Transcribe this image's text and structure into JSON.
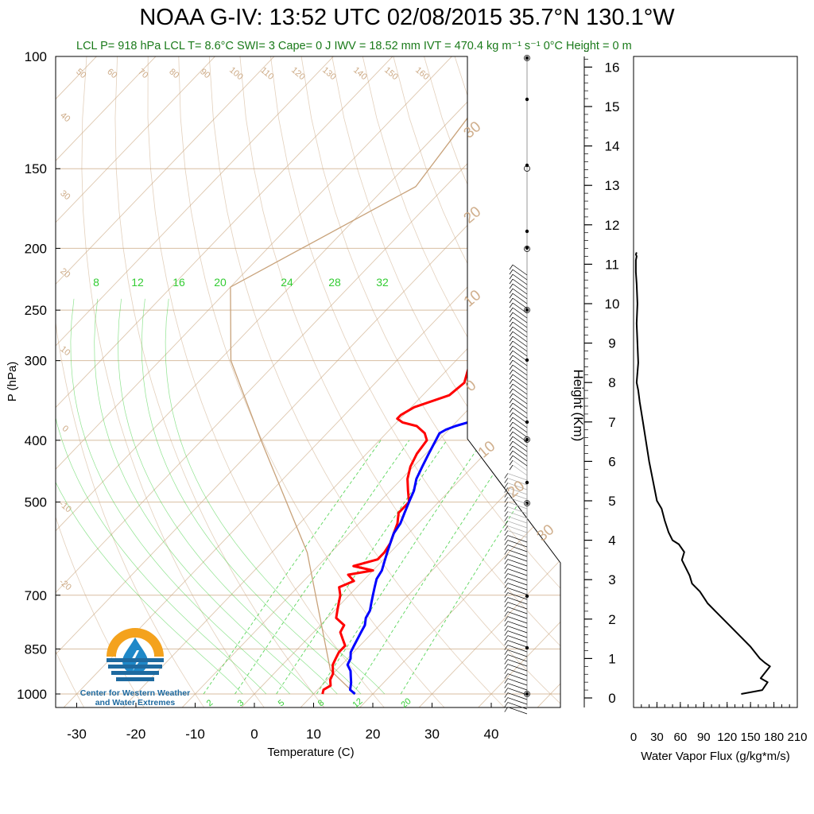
{
  "title": "NOAA G-IV: 13:52 UTC 02/08/2015  35.7°N 130.1°W",
  "subtitle": "LCL P= 918 hPa  LCL T= 8.6°C  SWI= 3  Cape= 0 J  IWV = 18.52 mm  IVT = 470.4 kg m⁻¹ s⁻¹  0°C Height = 0 m",
  "logo": {
    "line1": "Center for Western Weather",
    "line2": "and Water Extremes",
    "colors": {
      "sun": "#f4a21d",
      "drop": "#1e88c8",
      "water": "#1e6aa0"
    }
  },
  "colors": {
    "temperature": "#ff0000",
    "dewpoint": "#0000ff",
    "isotherm": "#c8a27a",
    "mixing_ratio": "#33cc33",
    "wind": "#000000",
    "flux": "#000000"
  },
  "chart_data": [
    {
      "type": "line",
      "name": "skew-t",
      "xlabel": "Temperature (C)",
      "ylabel": "P (hPa)",
      "xlim": [
        -34,
        52
      ],
      "ylim": [
        1025,
        100
      ],
      "y_scale": "log",
      "xticks": [
        -30,
        -20,
        -10,
        0,
        10,
        20,
        30,
        40
      ],
      "yticks": [
        100,
        150,
        200,
        250,
        300,
        400,
        500,
        700,
        850,
        1000
      ],
      "mixing_ratio_labels": [
        8,
        12,
        16,
        20,
        24,
        28,
        32
      ],
      "mixing_ratio_bottom_labels": [
        2,
        3,
        5,
        8,
        12,
        20
      ],
      "isotherm_left_labels": [
        40,
        30,
        20,
        10,
        0,
        -10,
        -20
      ],
      "isotherm_top_labels": [
        50,
        60,
        70,
        80,
        90,
        100,
        110,
        120,
        130,
        140,
        150,
        160
      ],
      "isotherm_right_labels": [
        30,
        20,
        10,
        0,
        -10,
        -20,
        -30
      ],
      "series": [
        {
          "name": "temperature",
          "p": [
            1000,
            985,
            970,
            950,
            930,
            900,
            880,
            860,
            840,
            820,
            800,
            780,
            760,
            740,
            720,
            700,
            680,
            665,
            650,
            640,
            630,
            615,
            600,
            580,
            560,
            540,
            520,
            500,
            480,
            460,
            440,
            420,
            400,
            390,
            380,
            375,
            370,
            365,
            355,
            340,
            325,
            310,
            300,
            290,
            280,
            270,
            260,
            250,
            240,
            232,
            225
          ],
          "temp": [
            11.5,
            11.0,
            11.5,
            10.5,
            10.0,
            8.5,
            8.0,
            7.5,
            7.5,
            6.0,
            4.5,
            4.0,
            1.5,
            0.5,
            -0.5,
            -1.5,
            -3.0,
            -1.5,
            -3.5,
            0.0,
            -4.0,
            -1.0,
            -1.0,
            -1.5,
            -2.5,
            -3.5,
            -5.0,
            -5.0,
            -7.0,
            -9.0,
            -10.5,
            -11.5,
            -12.0,
            -13.5,
            -16.0,
            -19.0,
            -20.5,
            -20.5,
            -19.5,
            -15.5,
            -15.0,
            -16.5,
            -17.0,
            -16.5,
            -16.0,
            -15.0,
            -14.0,
            -13.0,
            -11.0,
            -10.0,
            -10.5
          ]
        },
        {
          "name": "dewpoint",
          "p": [
            1000,
            985,
            960,
            940,
            920,
            900,
            880,
            860,
            840,
            820,
            800,
            780,
            760,
            740,
            720,
            700,
            680,
            660,
            640,
            620,
            600,
            580,
            560,
            540,
            520,
            500,
            480,
            460,
            440,
            420,
            400,
            390,
            385,
            380,
            375,
            370,
            360,
            350,
            340,
            330,
            320,
            310,
            300,
            290,
            280,
            270,
            260,
            250,
            240,
            232,
            226
          ],
          "temp": [
            17.0,
            15.5,
            14.5,
            13.5,
            12.5,
            11.0,
            10.5,
            9.5,
            9.0,
            8.5,
            8.0,
            7.5,
            6.5,
            6.0,
            5.0,
            4.0,
            3.0,
            2.0,
            1.5,
            0.5,
            -0.5,
            -1.5,
            -2.5,
            -3.0,
            -4.0,
            -5.0,
            -6.0,
            -7.5,
            -8.5,
            -9.5,
            -10.5,
            -11.0,
            -10.5,
            -9.5,
            -8.0,
            -6.0,
            -4.0,
            -2.5,
            -2.0,
            -3.5,
            -4.5,
            -5.0,
            -5.0,
            -4.5,
            -5.0,
            -4.0,
            -3.0,
            -3.0,
            -1.5,
            -1.5,
            -2.0
          ]
        }
      ]
    },
    {
      "type": "line",
      "name": "water-vapor-flux",
      "xlabel": "Water Vapor Flux (g/kg*m/s)",
      "ylabel": "Height (Km)",
      "xlim": [
        0,
        210
      ],
      "ylim": [
        0,
        16.5
      ],
      "xticks": [
        0,
        30,
        60,
        90,
        120,
        150,
        180,
        210
      ],
      "yticks": [
        0,
        1,
        2,
        3,
        4,
        5,
        6,
        7,
        8,
        9,
        10,
        11,
        12,
        13,
        14,
        15,
        16
      ],
      "series": [
        {
          "name": "flux",
          "x": [
            138,
            165,
            172,
            163,
            175,
            168,
            162,
            150,
            140,
            125,
            115,
            105,
            95,
            85,
            75,
            72,
            62,
            65,
            58,
            50,
            45,
            40,
            36,
            30,
            25,
            20,
            16,
            12,
            8,
            6,
            4,
            6,
            5,
            4,
            5,
            4,
            3,
            3,
            3,
            4,
            3,
            4
          ],
          "y": [
            0.1,
            0.2,
            0.4,
            0.5,
            0.8,
            0.9,
            1.0,
            1.3,
            1.5,
            1.8,
            2.0,
            2.2,
            2.4,
            2.7,
            2.9,
            3.1,
            3.5,
            3.7,
            3.9,
            4.0,
            4.2,
            4.5,
            4.8,
            5.0,
            5.5,
            6.0,
            6.5,
            7.0,
            7.5,
            7.8,
            8.0,
            8.5,
            9.0,
            9.5,
            10.0,
            10.5,
            10.8,
            11.0,
            11.1,
            11.2,
            11.25,
            11.3
          ]
        }
      ]
    }
  ]
}
